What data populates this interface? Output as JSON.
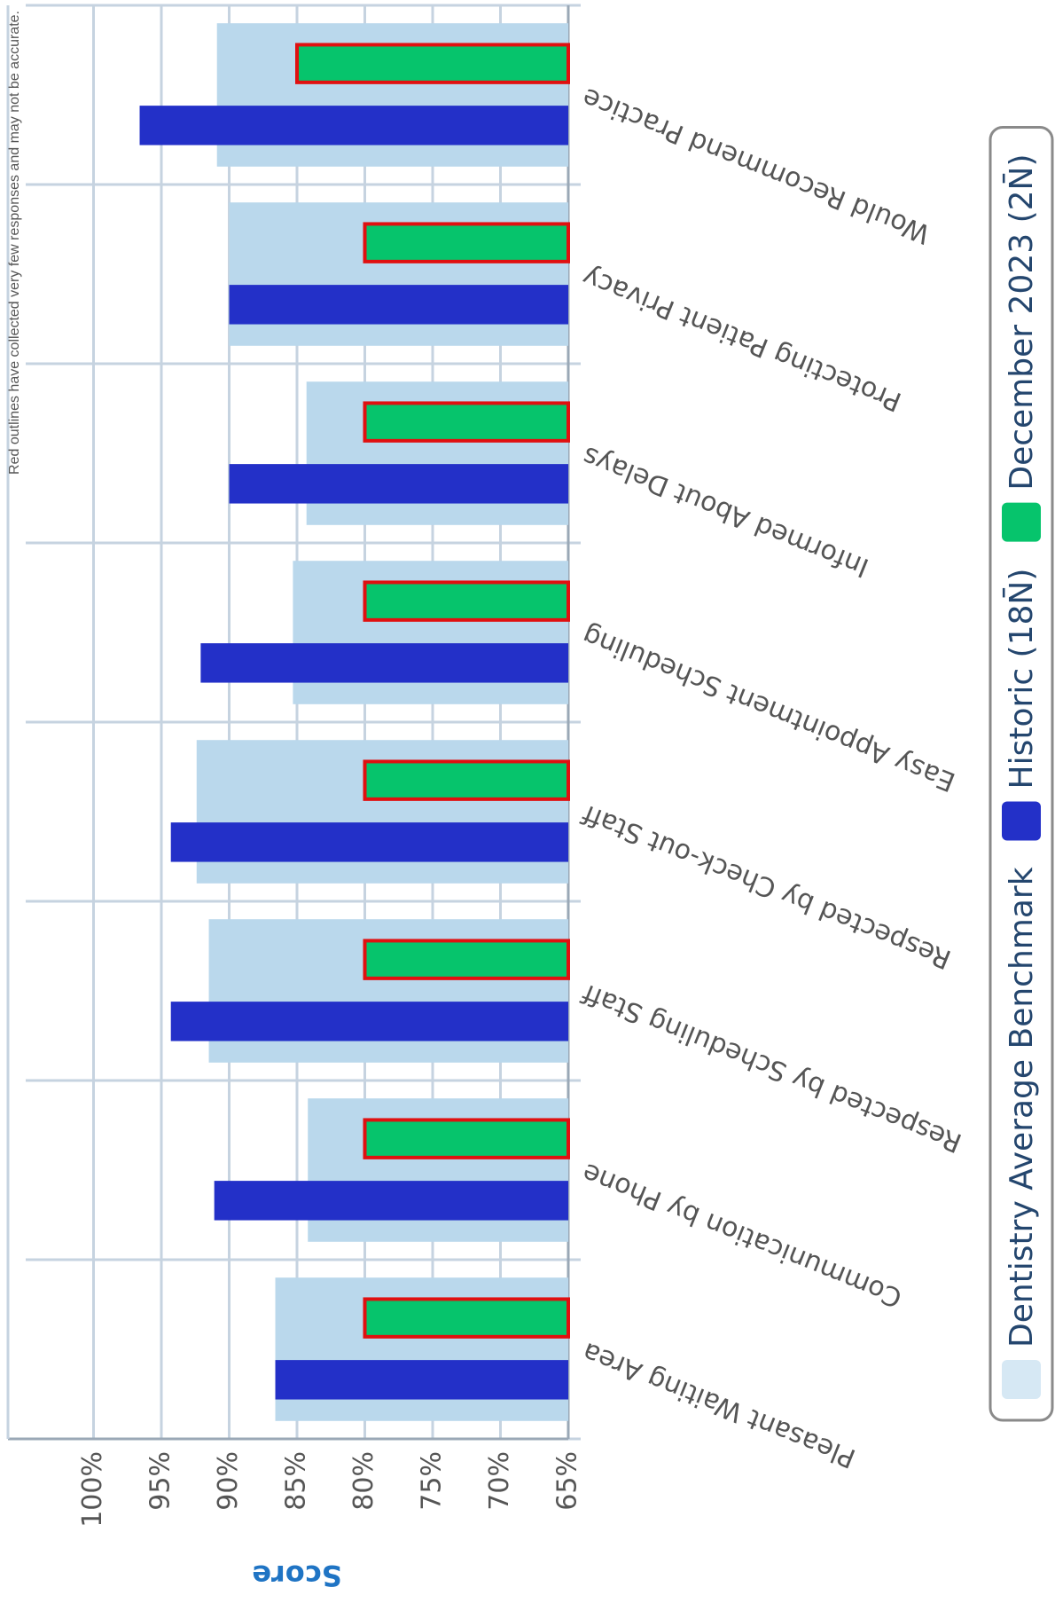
{
  "chart_data": {
    "type": "bar",
    "rotation": -90,
    "note": "Red outlines have collected very few responses and may not be accurate.",
    "y_label": "Score",
    "categories": [
      "Pleasant Waiting Area",
      "Communication by Phone",
      "Respected by Scheduling Staff",
      "Respected by Check-out Staff",
      "Easy Appointment Scheduling",
      "Informed About Delays",
      "Protecting Patient Privacy",
      "Would Recommend Practice"
    ],
    "series": [
      {
        "name": "Dentistry Average Benchmark",
        "color": "#bad8ec",
        "values": [
          86.6,
          84.2,
          91.5,
          92.4,
          85.3,
          84.3,
          90,
          90.9
        ]
      },
      {
        "name": "Historic (18N̄)",
        "color": "#2330c8",
        "values": [
          86.6,
          91.1,
          94.3,
          94.3,
          92.1,
          90,
          90,
          96.6
        ]
      },
      {
        "name": "December 2023 (2N̄)",
        "color": "#06c46c",
        "outline": "#e01010",
        "values": [
          80,
          80,
          80,
          80,
          80,
          80,
          80,
          85
        ]
      }
    ],
    "ylim": [
      65,
      105
    ],
    "yticks": [
      {
        "value": 65,
        "label": "65%"
      },
      {
        "value": 70,
        "label": "70%"
      },
      {
        "value": 75,
        "label": "75%"
      },
      {
        "value": 80,
        "label": "80%"
      },
      {
        "value": 85,
        "label": "85%"
      },
      {
        "value": 90,
        "label": "90%"
      },
      {
        "value": 95,
        "label": "95%"
      },
      {
        "value": 100,
        "label": "100%"
      }
    ],
    "grid": true,
    "legend": "bottom"
  }
}
